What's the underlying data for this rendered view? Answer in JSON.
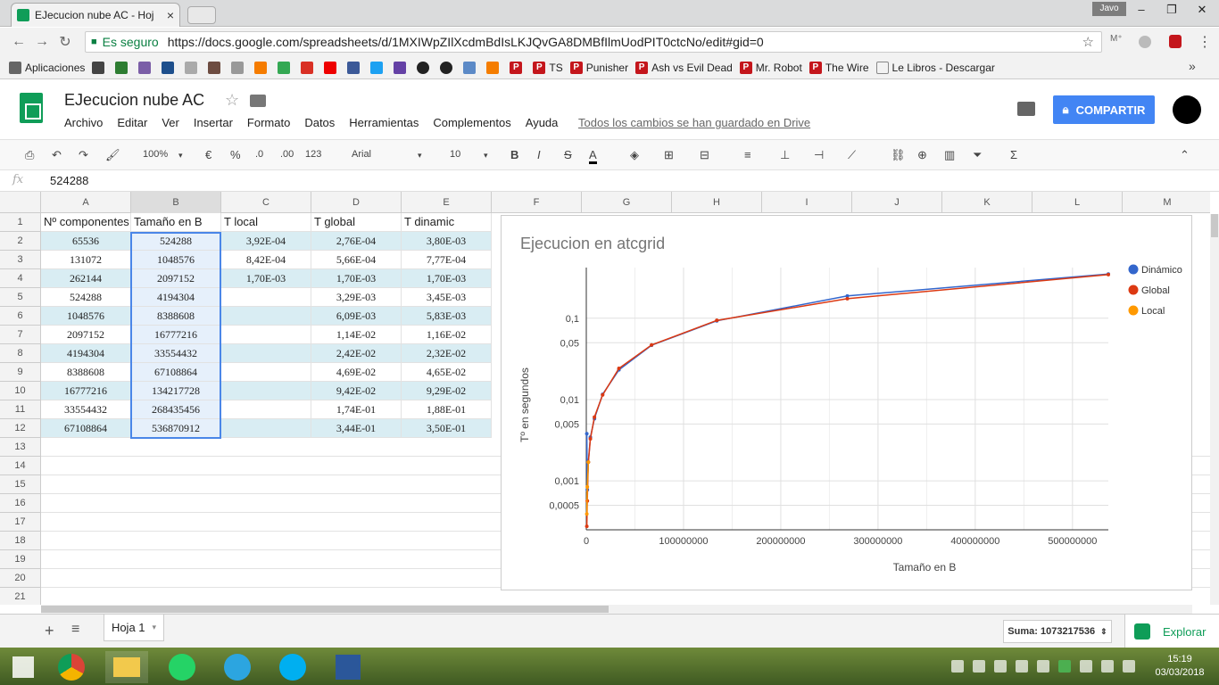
{
  "browser": {
    "tab_title": "EJecucion nube AC - Hoj",
    "tab_close": "×",
    "user": "Javo",
    "secure_label": "Es seguro",
    "url": "https://docs.google.com/spreadsheets/d/1MXIWpZIlXcdmBdIsLKJQvGA8DMBfIlmUodPIT0ctcNo/edit#gid=0",
    "bookmarks": [
      "Aplicaciones",
      "TS",
      "Punisher",
      "Ash vs Evil Dead",
      "Mr. Robot",
      "The Wire",
      "Le Libros - Descargar"
    ],
    "bookmarks_more": "»"
  },
  "sheet": {
    "doc_title": "EJecucion nube AC",
    "menu": [
      "Archivo",
      "Editar",
      "Ver",
      "Insertar",
      "Formato",
      "Datos",
      "Herramientas",
      "Complementos",
      "Ayuda"
    ],
    "saved_status": "Todos los cambios se han guardado en Drive",
    "share_label": "COMPARTIR",
    "zoom": "100%",
    "currency": "€",
    "percent": "%",
    "dec_less": ".0",
    "dec_more": ".00",
    "format_more": "123",
    "font": "Arial",
    "font_size": "10",
    "bold": "B",
    "italic": "I",
    "strike": "S",
    "text_color": "A",
    "formula_value": "524288",
    "fx": "fx"
  },
  "grid": {
    "columns": [
      "A",
      "B",
      "C",
      "D",
      "E",
      "F",
      "G",
      "H",
      "I",
      "J",
      "K",
      "L",
      "M"
    ],
    "rows": [
      "1",
      "2",
      "3",
      "4",
      "5",
      "6",
      "7",
      "8",
      "9",
      "10",
      "11",
      "12",
      "13",
      "14",
      "15",
      "16",
      "17",
      "18",
      "19",
      "20",
      "21"
    ],
    "header": [
      "Nº componentes",
      "Tamaño en B",
      "T local",
      "T global",
      "T dinamic"
    ],
    "data": [
      [
        "65536",
        "524288",
        "3,92E-04",
        "2,76E-04",
        "3,80E-03"
      ],
      [
        "131072",
        "1048576",
        "8,42E-04",
        "5,66E-04",
        "7,77E-04"
      ],
      [
        "262144",
        "2097152",
        "1,70E-03",
        "1,70E-03",
        "1,70E-03"
      ],
      [
        "524288",
        "4194304",
        "",
        "3,29E-03",
        "3,45E-03"
      ],
      [
        "1048576",
        "8388608",
        "",
        "6,09E-03",
        "5,83E-03"
      ],
      [
        "2097152",
        "16777216",
        "",
        "1,14E-02",
        "1,16E-02"
      ],
      [
        "4194304",
        "33554432",
        "",
        "2,42E-02",
        "2,32E-02"
      ],
      [
        "8388608",
        "67108864",
        "",
        "4,69E-02",
        "4,65E-02"
      ],
      [
        "16777216",
        "134217728",
        "",
        "9,42E-02",
        "9,29E-02"
      ],
      [
        "33554432",
        "268435456",
        "",
        "1,74E-01",
        "1,88E-01"
      ],
      [
        "67108864",
        "536870912",
        "",
        "3,44E-01",
        "3,50E-01"
      ]
    ]
  },
  "bottom": {
    "add": "+",
    "sheet_tab": "Hoja 1",
    "sum": "Suma: 1073217536",
    "explore": "Explorar"
  },
  "taskbar": {
    "time": "15:19",
    "date": "03/03/2018"
  },
  "chart_data": {
    "type": "line",
    "title": "Ejecucion en atcgrid",
    "xlabel": "Tamaño en B",
    "ylabel": "Tº en segundos",
    "y_scale": "log",
    "xlim": [
      0,
      536870912
    ],
    "x_ticks": [
      "0",
      "100000000",
      "200000000",
      "300000000",
      "400000000",
      "500000000"
    ],
    "y_ticks": [
      "0,0005",
      "0,001",
      "0,005",
      "0,01",
      "0,05",
      "0,1"
    ],
    "legend_position": "right",
    "series": [
      {
        "name": "Dinámico",
        "color": "#3366cc",
        "x": [
          524288,
          1048576,
          2097152,
          4194304,
          8388608,
          16777216,
          33554432,
          67108864,
          134217728,
          268435456,
          536870912
        ],
        "y": [
          0.0038,
          0.000777,
          0.0017,
          0.00345,
          0.00583,
          0.0116,
          0.0232,
          0.0465,
          0.0929,
          0.188,
          0.35
        ]
      },
      {
        "name": "Global",
        "color": "#dc3912",
        "x": [
          524288,
          1048576,
          2097152,
          4194304,
          8388608,
          16777216,
          33554432,
          67108864,
          134217728,
          268435456,
          536870912
        ],
        "y": [
          0.000276,
          0.000566,
          0.0017,
          0.00329,
          0.00609,
          0.0114,
          0.0242,
          0.0469,
          0.0942,
          0.174,
          0.344
        ]
      },
      {
        "name": "Local",
        "color": "#ff9900",
        "x": [
          524288,
          1048576,
          2097152
        ],
        "y": [
          0.000392,
          0.000842,
          0.0017
        ]
      }
    ]
  }
}
